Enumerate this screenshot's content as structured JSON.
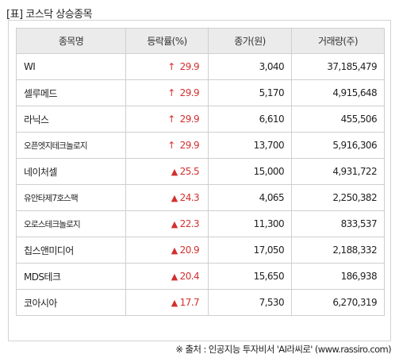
{
  "title": "[표] 코스닥 상승종목",
  "table": {
    "headers": [
      "종목명",
      "등락률(%)",
      "종가(원)",
      "거래량(주)"
    ],
    "rows": [
      {
        "name": "WI",
        "rate": "29.9",
        "indicator": "↑",
        "price": "3,040",
        "volume": "37,185,479"
      },
      {
        "name": "셀루메드",
        "rate": "29.9",
        "indicator": "↑",
        "price": "5,170",
        "volume": "4,915,648"
      },
      {
        "name": "라닉스",
        "rate": "29.9",
        "indicator": "↑",
        "price": "6,610",
        "volume": "455,506"
      },
      {
        "name": "오픈엣지테크놀로지",
        "rate": "29.9",
        "indicator": "↑",
        "price": "13,700",
        "volume": "5,916,306"
      },
      {
        "name": "네이처셀",
        "rate": "25.5",
        "indicator": "▲",
        "price": "15,000",
        "volume": "4,931,722"
      },
      {
        "name": "유안타제7호스팩",
        "rate": "24.3",
        "indicator": "▲",
        "price": "4,065",
        "volume": "2,250,382"
      },
      {
        "name": "오로스테크놀로지",
        "rate": "22.3",
        "indicator": "▲",
        "price": "11,300",
        "volume": "833,537"
      },
      {
        "name": "칩스앤미디어",
        "rate": "20.9",
        "indicator": "▲",
        "price": "17,050",
        "volume": "2,188,332"
      },
      {
        "name": "MDS테크",
        "rate": "20.4",
        "indicator": "▲",
        "price": "15,650",
        "volume": "186,938"
      },
      {
        "name": "코아시아",
        "rate": "17.7",
        "indicator": "▲",
        "price": "7,530",
        "volume": "6,270,319"
      }
    ]
  },
  "source": "※ 출처 : 인공지능 투자비서 'AI라씨로' (www.rassiro.com)",
  "colors": {
    "rise": "#d32f2f",
    "header_bg": "#ebebeb",
    "border": "#cfcfcf"
  }
}
